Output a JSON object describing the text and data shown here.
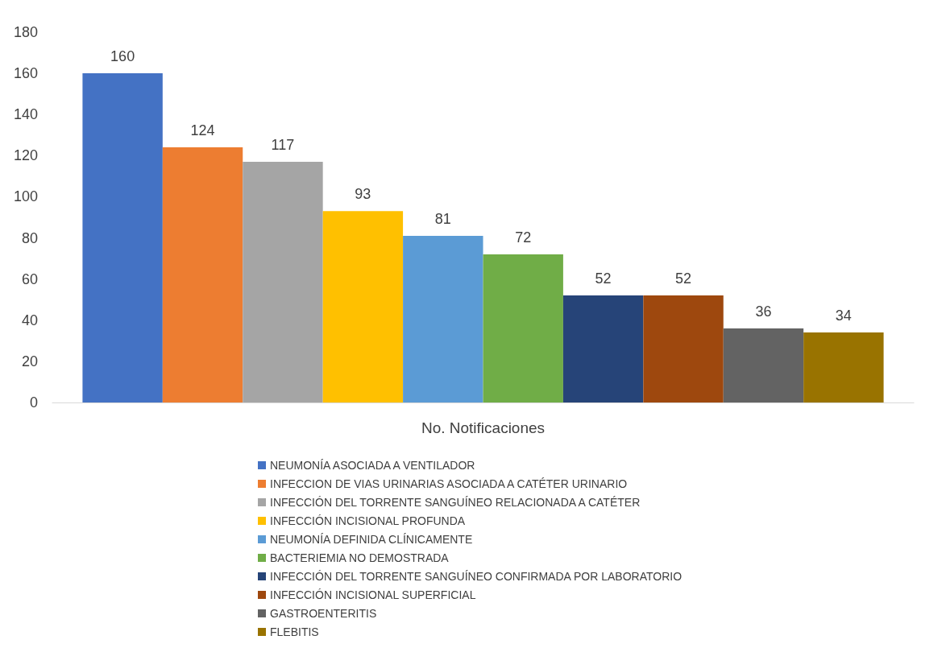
{
  "chart_data": {
    "type": "bar",
    "categories": [
      "No. Notificaciones"
    ],
    "series": [
      {
        "name": "NEUMONÍA ASOCIADA A VENTILADOR",
        "color": "#4472c4",
        "values": [
          160
        ]
      },
      {
        "name": "INFECCION DE VIAS URINARIAS ASOCIADA A CATÉTER URINARIO",
        "color": "#ed7d31",
        "values": [
          124
        ]
      },
      {
        "name": "INFECCIÓN DEL TORRENTE SANGUÍNEO RELACIONADA A CATÉTER",
        "color": "#a5a5a5",
        "values": [
          117
        ]
      },
      {
        "name": "INFECCIÓN INCISIONAL PROFUNDA",
        "color": "#ffc000",
        "values": [
          93
        ]
      },
      {
        "name": "NEUMONÍA DEFINIDA CLÍNICAMENTE",
        "color": "#5b9bd5",
        "values": [
          81
        ]
      },
      {
        "name": "BACTERIEMIA NO DEMOSTRADA",
        "color": "#70ad47",
        "values": [
          72
        ]
      },
      {
        "name": "INFECCIÓN DEL TORRENTE SANGUÍNEO CONFIRMADA POR LABORATORIO",
        "color": "#264478",
        "values": [
          52
        ]
      },
      {
        "name": "INFECCIÓN INCISIONAL SUPERFICIAL",
        "color": "#9e480e",
        "values": [
          52
        ]
      },
      {
        "name": "GASTROENTERITIS",
        "color": "#636363",
        "values": [
          36
        ]
      },
      {
        "name": "FLEBITIS",
        "color": "#997300",
        "values": [
          34
        ]
      }
    ],
    "ylim": [
      0,
      180
    ],
    "yticks": [
      0,
      20,
      40,
      60,
      80,
      100,
      120,
      140,
      160,
      180
    ],
    "grid": false,
    "data_labels": true,
    "legend": "bottom"
  }
}
